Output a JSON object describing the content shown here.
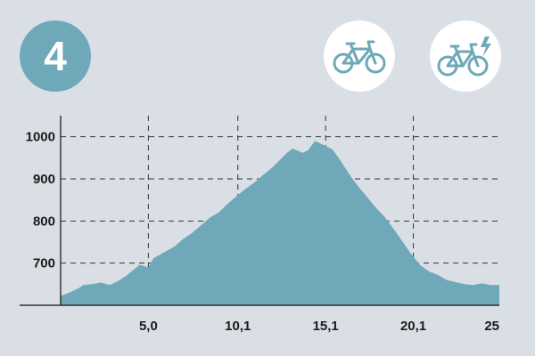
{
  "stage": {
    "number": "4"
  },
  "badges": [
    {
      "label": "",
      "icon": "bicycle-icon"
    },
    {
      "label": "",
      "icon": "electric-bicycle-icon"
    }
  ],
  "colors": {
    "background": "#d9dfe5",
    "accent": "#6fa8b8",
    "badge_bg": "#ffffff",
    "text": "#1b1b1b",
    "grid": "#333333"
  },
  "chart_data": {
    "type": "area",
    "title": "",
    "xlabel": "",
    "ylabel": "",
    "xlim": [
      0,
      25
    ],
    "ylim": [
      600,
      1050
    ],
    "x_ticks": [
      {
        "value": 5.0,
        "label": "5,0"
      },
      {
        "value": 10.1,
        "label": "10,1"
      },
      {
        "value": 15.1,
        "label": "15,1"
      },
      {
        "value": 20.1,
        "label": "20,1"
      },
      {
        "value": 25,
        "label": "25"
      }
    ],
    "y_ticks": [
      {
        "value": 700,
        "label": "700"
      },
      {
        "value": 800,
        "label": "800"
      },
      {
        "value": 900,
        "label": "900"
      },
      {
        "value": 1000,
        "label": "1000"
      }
    ],
    "grid": true,
    "series": [
      {
        "x": [
          0,
          0.5,
          1.0,
          1.3,
          1.8,
          2.3,
          2.8,
          3.3,
          3.8,
          4.5,
          5.0,
          5.3,
          6.0,
          6.5,
          7.0,
          7.5,
          8.0,
          8.5,
          9.0,
          9.5,
          10.0,
          10.5,
          11.0,
          11.5,
          12.0,
          12.5,
          12.8,
          13.2,
          13.8,
          14.1,
          14.5,
          15.1,
          15.5,
          16.0,
          16.5,
          17.0,
          17.5,
          18.0,
          18.5,
          19.0,
          19.5,
          20.0,
          20.5,
          21.0,
          21.5,
          22.0,
          22.5,
          23.0,
          23.5,
          24.0,
          24.5,
          25.0
        ],
        "y": [
          622,
          630,
          640,
          648,
          650,
          654,
          648,
          658,
          672,
          696,
          690,
          712,
          728,
          740,
          758,
          772,
          790,
          808,
          820,
          840,
          858,
          875,
          890,
          908,
          925,
          945,
          958,
          972,
          962,
          968,
          990,
          978,
          970,
          940,
          908,
          880,
          855,
          830,
          808,
          780,
          750,
          720,
          695,
          680,
          672,
          660,
          655,
          650,
          648,
          652,
          648,
          648
        ]
      }
    ]
  }
}
